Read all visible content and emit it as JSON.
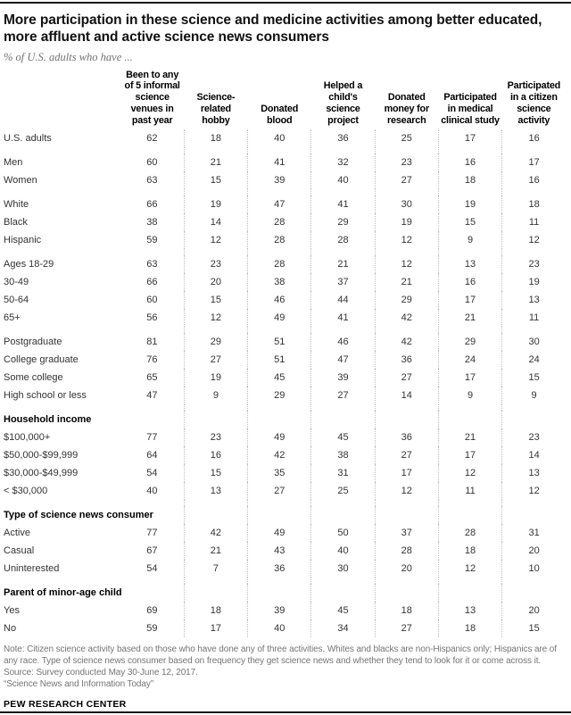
{
  "colors": {
    "rule": "#1a1a1a",
    "title_text": "#111111",
    "body_text": "#333333",
    "muted_text": "#757575",
    "dotted_divider": "#bdbdbd",
    "background": "#ffffff"
  },
  "chart_data": {
    "type": "table",
    "title": "More participation in these science and medicine activities among better educated,\nmore affluent and active science news consumers",
    "subtitle": "% of U.S. adults who have ...",
    "columns": [
      "Been to any\nof 5 informal\nscience\nvenues in\npast year",
      "Science-\nrelated\nhobby",
      "Donated\nblood",
      "Helped a\nchild's\nscience\nproject",
      "Donated\nmoney for\nresearch",
      "Participated\nin medical\nclinical study",
      "Participated\nin a citizen\nscience\nactivity"
    ],
    "sections": [
      {
        "header": "",
        "rows": [
          {
            "label": "U.S. adults",
            "values": [
              62,
              18,
              40,
              36,
              25,
              17,
              16
            ]
          }
        ]
      },
      {
        "header": "",
        "rows": [
          {
            "label": "Men",
            "values": [
              60,
              21,
              41,
              32,
              23,
              16,
              17
            ]
          },
          {
            "label": "Women",
            "values": [
              63,
              15,
              39,
              40,
              27,
              18,
              16
            ]
          }
        ]
      },
      {
        "header": "",
        "rows": [
          {
            "label": "White",
            "values": [
              66,
              19,
              47,
              41,
              30,
              19,
              18
            ]
          },
          {
            "label": "Black",
            "values": [
              38,
              14,
              28,
              29,
              19,
              15,
              11
            ]
          },
          {
            "label": "Hispanic",
            "values": [
              59,
              12,
              28,
              28,
              12,
              9,
              12
            ]
          }
        ]
      },
      {
        "header": "",
        "rows": [
          {
            "label": "Ages 18-29",
            "values": [
              63,
              23,
              28,
              21,
              12,
              13,
              23
            ]
          },
          {
            "label": "30-49",
            "values": [
              66,
              20,
              38,
              37,
              21,
              16,
              19
            ]
          },
          {
            "label": "50-64",
            "values": [
              60,
              15,
              46,
              44,
              29,
              17,
              13
            ]
          },
          {
            "label": "65+",
            "values": [
              56,
              12,
              49,
              41,
              42,
              21,
              11
            ]
          }
        ]
      },
      {
        "header": "",
        "rows": [
          {
            "label": "Postgraduate",
            "values": [
              81,
              29,
              51,
              46,
              42,
              29,
              30
            ]
          },
          {
            "label": "College graduate",
            "values": [
              76,
              27,
              51,
              47,
              36,
              24,
              24
            ]
          },
          {
            "label": "Some college",
            "values": [
              65,
              19,
              45,
              39,
              27,
              17,
              15
            ]
          },
          {
            "label": "High school or less",
            "values": [
              47,
              9,
              29,
              27,
              14,
              9,
              9
            ]
          }
        ]
      },
      {
        "header": "Household income",
        "rows": [
          {
            "label": "$100,000+",
            "values": [
              77,
              23,
              49,
              45,
              36,
              21,
              23
            ]
          },
          {
            "label": "$50,000-$99,999",
            "values": [
              64,
              16,
              42,
              38,
              27,
              17,
              14
            ]
          },
          {
            "label": "$30,000-$49,999",
            "values": [
              54,
              15,
              35,
              31,
              17,
              12,
              13
            ]
          },
          {
            "label": "< $30,000",
            "values": [
              40,
              13,
              27,
              25,
              12,
              11,
              12
            ]
          }
        ]
      },
      {
        "header": "Type of science news consumer",
        "rows": [
          {
            "label": "Active",
            "values": [
              77,
              42,
              49,
              50,
              37,
              28,
              31
            ]
          },
          {
            "label": "Casual",
            "values": [
              67,
              21,
              43,
              40,
              28,
              18,
              20
            ]
          },
          {
            "label": "Uninterested",
            "values": [
              54,
              7,
              36,
              30,
              20,
              12,
              10
            ]
          }
        ]
      },
      {
        "header": "Parent of minor-age child",
        "rows": [
          {
            "label": "Yes",
            "values": [
              69,
              18,
              39,
              45,
              18,
              13,
              20
            ]
          },
          {
            "label": "No",
            "values": [
              59,
              17,
              40,
              34,
              27,
              18,
              15
            ]
          }
        ]
      }
    ]
  },
  "footer": {
    "note": "Note: Citizen science activity based on those who have done any of three activities. Whites and blacks are non-Hispanics only; Hispanics are of any race. Type of science news consumer based on frequency they get science news and whether they tend to look for it or come across it.",
    "source": "Source: Survey conducted May 30-June 12, 2017.",
    "report": "“Science News and Information Today”",
    "brand": "PEW RESEARCH CENTER"
  }
}
